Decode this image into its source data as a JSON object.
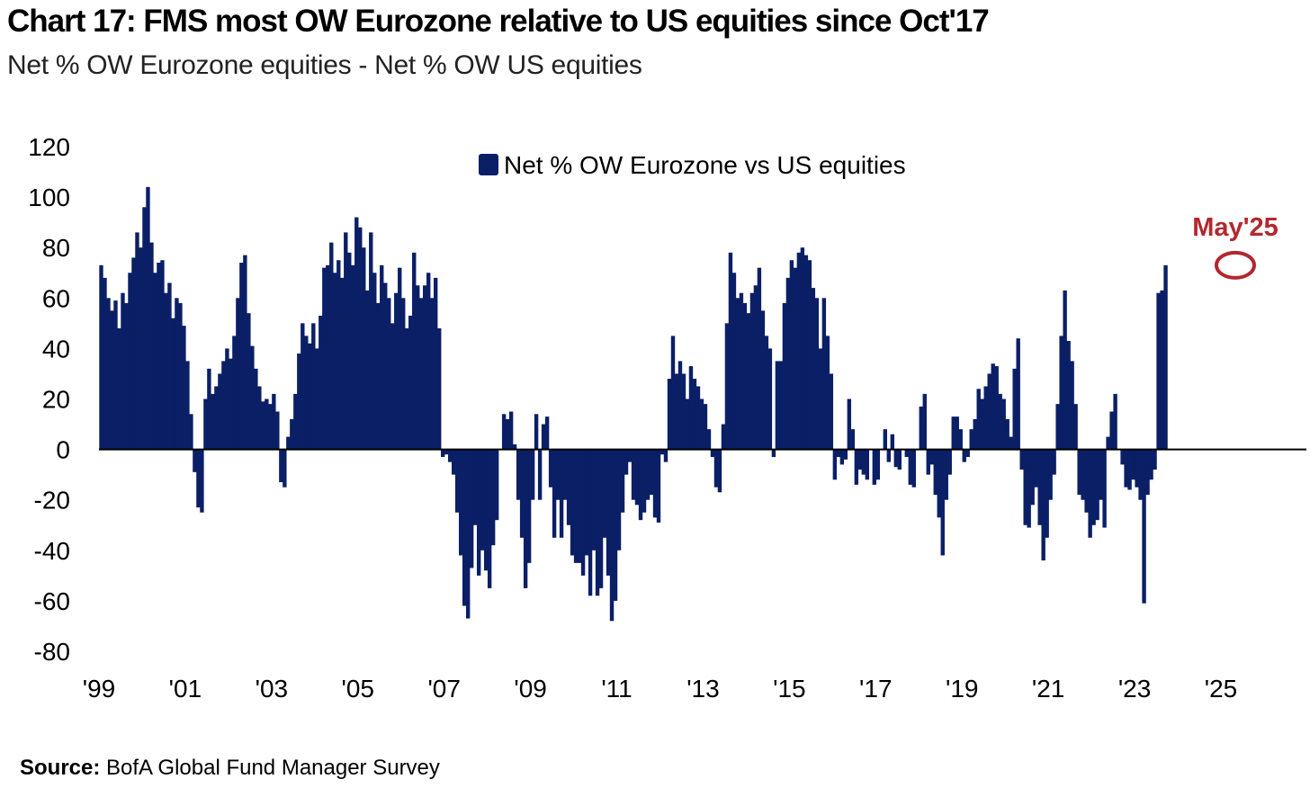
{
  "header": {
    "title": "Chart 17: FMS most OW Eurozone relative to US equities since Oct'17",
    "subtitle": "Net % OW Eurozone equities - Net % OW US equities"
  },
  "source": {
    "label": "Source:",
    "text": "BofA Global Fund Manager Survey"
  },
  "colors": {
    "bar": "#0b1f66",
    "annotation": "#b2282e",
    "axis": "#000000"
  },
  "chart_data": {
    "type": "bar",
    "title": "",
    "xlabel": "",
    "ylabel": "",
    "ylim": [
      -80,
      120
    ],
    "yticks": [
      120,
      100,
      80,
      60,
      40,
      20,
      0,
      -20,
      -40,
      -60,
      -80
    ],
    "xtick_labels": [
      "'99",
      "'01",
      "'03",
      "'05",
      "'07",
      "'09",
      "'11",
      "'13",
      "'15",
      "'17",
      "'19",
      "'21",
      "'23",
      "'25"
    ],
    "x_start": "1999-01",
    "x_end": "2025-05",
    "frequency": "monthly",
    "grid": false,
    "legend_position": "top-center",
    "series": [
      {
        "name": "Net % OW Eurozone vs US equities",
        "values": [
          73,
          68,
          60,
          55,
          59,
          48,
          62,
          58,
          70,
          76,
          86,
          80,
          96,
          104,
          82,
          70,
          74,
          75,
          62,
          66,
          52,
          60,
          58,
          49,
          35,
          14,
          -9,
          -23,
          -25,
          20,
          32,
          22,
          25,
          30,
          35,
          40,
          36,
          45,
          60,
          74,
          77,
          54,
          41,
          32,
          25,
          19,
          20,
          18,
          22,
          15,
          -13,
          -15,
          5,
          12,
          22,
          38,
          50,
          45,
          42,
          50,
          40,
          53,
          72,
          73,
          82,
          70,
          75,
          68,
          86,
          78,
          73,
          92,
          88,
          80,
          63,
          86,
          70,
          58,
          73,
          66,
          60,
          50,
          62,
          72,
          60,
          48,
          53,
          78,
          65,
          60,
          65,
          70,
          60,
          68,
          48,
          -3,
          -2,
          -5,
          -10,
          -25,
          -42,
          -62,
          -67,
          -47,
          -30,
          -50,
          -40,
          -48,
          -55,
          -38,
          -28,
          0,
          14,
          12,
          15,
          2,
          -20,
          -35,
          -55,
          -45,
          -20,
          14,
          -20,
          10,
          13,
          -15,
          -35,
          -20,
          -35,
          -20,
          -30,
          -42,
          -45,
          -45,
          -50,
          -42,
          -58,
          -40,
          -58,
          -55,
          -35,
          -50,
          -68,
          -60,
          -40,
          -25,
          -10,
          -5,
          -20,
          -22,
          -28,
          -25,
          -20,
          -18,
          -27,
          -29,
          -2,
          -5,
          28,
          45,
          30,
          35,
          30,
          20,
          33,
          28,
          25,
          20,
          18,
          8,
          -3,
          -15,
          -17,
          10,
          50,
          78,
          70,
          60,
          62,
          58,
          54,
          62,
          65,
          72,
          55,
          45,
          40,
          -3,
          35,
          35,
          58,
          68,
          75,
          72,
          78,
          80,
          77,
          75,
          64,
          60,
          40,
          60,
          45,
          30,
          -12,
          -3,
          -6,
          -4,
          20,
          8,
          -14,
          -8,
          -10,
          -12,
          0,
          -14,
          -12,
          0,
          8,
          -5,
          6,
          -7,
          -8,
          0,
          -3,
          -14,
          -15,
          0,
          17,
          22,
          -10,
          -6,
          -18,
          -27,
          -42,
          -20,
          -10,
          13,
          13,
          8,
          -5,
          -3,
          8,
          12,
          24,
          20,
          25,
          30,
          34,
          33,
          22,
          20,
          12,
          5,
          32,
          44,
          -8,
          -30,
          -31,
          -22,
          -15,
          -30,
          -44,
          -35,
          -20,
          -10,
          18,
          45,
          63,
          43,
          35,
          18,
          -18,
          -20,
          -25,
          -35,
          -30,
          -28,
          -20,
          -31,
          5,
          15,
          22,
          0,
          -6,
          -15,
          -16,
          -12,
          -15,
          -20,
          -61,
          -18,
          -12,
          -8,
          62,
          63,
          73
        ]
      }
    ],
    "annotations": [
      {
        "label": "May'25",
        "x": "2025-05",
        "y": 73
      }
    ]
  }
}
